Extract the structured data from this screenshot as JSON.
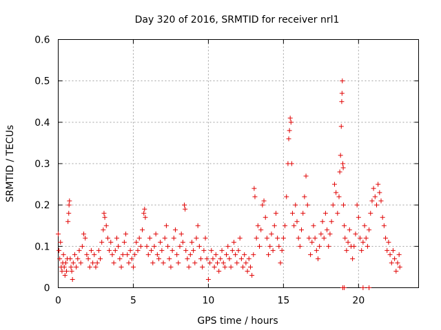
{
  "chart_data": {
    "type": "scatter",
    "title": "Day 320 of 2016, SRMTID for receiver nrl1",
    "xlabel": "GPS time / hours",
    "ylabel": "SRMTID / TECUs",
    "xlim": [
      0,
      24
    ],
    "ylim": [
      0,
      0.6
    ],
    "x_ticks": [
      0,
      5,
      10,
      15,
      20
    ],
    "y_ticks": [
      0,
      0.1,
      0.2,
      0.3,
      0.4,
      0.5,
      0.6
    ],
    "x_tick_labels": [
      "0",
      "5",
      "10",
      "15",
      "20"
    ],
    "y_tick_labels": [
      "0",
      "0.1",
      "0.2",
      "0.3",
      "0.4",
      "0.5",
      "0.6"
    ],
    "grid": true,
    "marker": "+",
    "color": "#e00000",
    "series": [
      {
        "name": "SRMTID",
        "points": [
          [
            0.0,
            0.13
          ],
          [
            0.05,
            0.09
          ],
          [
            0.1,
            0.07
          ],
          [
            0.15,
            0.11
          ],
          [
            0.2,
            0.05
          ],
          [
            0.25,
            0.04
          ],
          [
            0.3,
            0.06
          ],
          [
            0.35,
            0.08
          ],
          [
            0.4,
            0.05
          ],
          [
            0.45,
            0.03
          ],
          [
            0.5,
            0.06
          ],
          [
            0.55,
            0.04
          ],
          [
            0.6,
            0.07
          ],
          [
            0.65,
            0.16
          ],
          [
            0.7,
            0.18
          ],
          [
            0.72,
            0.2
          ],
          [
            0.75,
            0.21
          ],
          [
            0.8,
            0.07
          ],
          [
            0.85,
            0.05
          ],
          [
            0.9,
            0.04
          ],
          [
            0.95,
            0.02
          ],
          [
            1.0,
            0.06
          ],
          [
            1.1,
            0.08
          ],
          [
            1.2,
            0.05
          ],
          [
            1.3,
            0.07
          ],
          [
            1.4,
            0.09
          ],
          [
            1.5,
            0.06
          ],
          [
            1.6,
            0.1
          ],
          [
            1.7,
            0.13
          ],
          [
            1.8,
            0.12
          ],
          [
            1.9,
            0.08
          ],
          [
            2.0,
            0.07
          ],
          [
            2.1,
            0.05
          ],
          [
            2.2,
            0.09
          ],
          [
            2.3,
            0.06
          ],
          [
            2.4,
            0.08
          ],
          [
            2.5,
            0.05
          ],
          [
            2.6,
            0.06
          ],
          [
            2.7,
            0.09
          ],
          [
            2.8,
            0.07
          ],
          [
            2.9,
            0.11
          ],
          [
            3.0,
            0.14
          ],
          [
            3.05,
            0.18
          ],
          [
            3.1,
            0.17
          ],
          [
            3.2,
            0.15
          ],
          [
            3.3,
            0.12
          ],
          [
            3.4,
            0.09
          ],
          [
            3.5,
            0.11
          ],
          [
            3.6,
            0.08
          ],
          [
            3.7,
            0.06
          ],
          [
            3.8,
            0.09
          ],
          [
            3.9,
            0.12
          ],
          [
            4.0,
            0.1
          ],
          [
            4.1,
            0.07
          ],
          [
            4.2,
            0.05
          ],
          [
            4.3,
            0.08
          ],
          [
            4.4,
            0.11
          ],
          [
            4.5,
            0.13
          ],
          [
            4.6,
            0.08
          ],
          [
            4.7,
            0.06
          ],
          [
            4.8,
            0.09
          ],
          [
            4.9,
            0.07
          ],
          [
            5.0,
            0.05
          ],
          [
            5.1,
            0.08
          ],
          [
            5.2,
            0.11
          ],
          [
            5.3,
            0.09
          ],
          [
            5.4,
            0.12
          ],
          [
            5.5,
            0.1
          ],
          [
            5.6,
            0.14
          ],
          [
            5.7,
            0.18
          ],
          [
            5.75,
            0.19
          ],
          [
            5.8,
            0.17
          ],
          [
            5.9,
            0.1
          ],
          [
            6.0,
            0.08
          ],
          [
            6.1,
            0.12
          ],
          [
            6.2,
            0.09
          ],
          [
            6.3,
            0.06
          ],
          [
            6.4,
            0.1
          ],
          [
            6.5,
            0.13
          ],
          [
            6.6,
            0.08
          ],
          [
            6.7,
            0.07
          ],
          [
            6.8,
            0.11
          ],
          [
            6.9,
            0.09
          ],
          [
            7.0,
            0.06
          ],
          [
            7.1,
            0.12
          ],
          [
            7.2,
            0.15
          ],
          [
            7.3,
            0.1
          ],
          [
            7.4,
            0.07
          ],
          [
            7.5,
            0.05
          ],
          [
            7.6,
            0.09
          ],
          [
            7.7,
            0.12
          ],
          [
            7.8,
            0.14
          ],
          [
            7.9,
            0.08
          ],
          [
            8.0,
            0.06
          ],
          [
            8.1,
            0.1
          ],
          [
            8.2,
            0.13
          ],
          [
            8.3,
            0.11
          ],
          [
            8.4,
            0.2
          ],
          [
            8.45,
            0.19
          ],
          [
            8.5,
            0.09
          ],
          [
            8.6,
            0.07
          ],
          [
            8.7,
            0.05
          ],
          [
            8.8,
            0.08
          ],
          [
            8.9,
            0.11
          ],
          [
            9.0,
            0.09
          ],
          [
            9.1,
            0.06
          ],
          [
            9.2,
            0.12
          ],
          [
            9.3,
            0.15
          ],
          [
            9.4,
            0.1
          ],
          [
            9.5,
            0.07
          ],
          [
            9.6,
            0.05
          ],
          [
            9.7,
            0.09
          ],
          [
            9.8,
            0.12
          ],
          [
            9.9,
            0.07
          ],
          [
            10.0,
            0.02
          ],
          [
            10.1,
            0.06
          ],
          [
            10.2,
            0.09
          ],
          [
            10.3,
            0.07
          ],
          [
            10.4,
            0.05
          ],
          [
            10.5,
            0.08
          ],
          [
            10.6,
            0.06
          ],
          [
            10.7,
            0.04
          ],
          [
            10.8,
            0.07
          ],
          [
            10.9,
            0.09
          ],
          [
            11.0,
            0.06
          ],
          [
            11.1,
            0.05
          ],
          [
            11.2,
            0.08
          ],
          [
            11.3,
            0.1
          ],
          [
            11.4,
            0.07
          ],
          [
            11.5,
            0.05
          ],
          [
            11.6,
            0.09
          ],
          [
            11.7,
            0.11
          ],
          [
            11.8,
            0.08
          ],
          [
            11.9,
            0.06
          ],
          [
            12.0,
            0.09
          ],
          [
            12.1,
            0.12
          ],
          [
            12.2,
            0.07
          ],
          [
            12.3,
            0.05
          ],
          [
            12.4,
            0.08
          ],
          [
            12.5,
            0.06
          ],
          [
            12.6,
            0.04
          ],
          [
            12.7,
            0.07
          ],
          [
            12.8,
            0.05
          ],
          [
            12.9,
            0.03
          ],
          [
            13.0,
            0.08
          ],
          [
            13.05,
            0.24
          ],
          [
            13.1,
            0.22
          ],
          [
            13.2,
            0.12
          ],
          [
            13.3,
            0.15
          ],
          [
            13.4,
            0.1
          ],
          [
            13.5,
            0.14
          ],
          [
            13.6,
            0.2
          ],
          [
            13.7,
            0.21
          ],
          [
            13.8,
            0.17
          ],
          [
            13.9,
            0.12
          ],
          [
            14.0,
            0.08
          ],
          [
            14.1,
            0.1
          ],
          [
            14.2,
            0.13
          ],
          [
            14.3,
            0.09
          ],
          [
            14.4,
            0.15
          ],
          [
            14.5,
            0.18
          ],
          [
            14.6,
            0.12
          ],
          [
            14.7,
            0.1
          ],
          [
            14.8,
            0.06
          ],
          [
            14.9,
            0.09
          ],
          [
            15.0,
            0.12
          ],
          [
            15.1,
            0.15
          ],
          [
            15.2,
            0.22
          ],
          [
            15.3,
            0.3
          ],
          [
            15.35,
            0.36
          ],
          [
            15.4,
            0.38
          ],
          [
            15.45,
            0.41
          ],
          [
            15.5,
            0.4
          ],
          [
            15.55,
            0.3
          ],
          [
            15.6,
            0.18
          ],
          [
            15.7,
            0.15
          ],
          [
            15.8,
            0.2
          ],
          [
            15.9,
            0.16
          ],
          [
            16.0,
            0.12
          ],
          [
            16.1,
            0.1
          ],
          [
            16.2,
            0.14
          ],
          [
            16.3,
            0.18
          ],
          [
            16.4,
            0.22
          ],
          [
            16.5,
            0.27
          ],
          [
            16.6,
            0.2
          ],
          [
            16.7,
            0.12
          ],
          [
            16.8,
            0.08
          ],
          [
            16.9,
            0.11
          ],
          [
            17.0,
            0.15
          ],
          [
            17.1,
            0.12
          ],
          [
            17.2,
            0.09
          ],
          [
            17.3,
            0.07
          ],
          [
            17.4,
            0.1
          ],
          [
            17.5,
            0.13
          ],
          [
            17.6,
            0.16
          ],
          [
            17.7,
            0.12
          ],
          [
            17.8,
            0.18
          ],
          [
            17.9,
            0.14
          ],
          [
            18.0,
            0.1
          ],
          [
            18.1,
            0.13
          ],
          [
            18.2,
            0.16
          ],
          [
            18.3,
            0.2
          ],
          [
            18.4,
            0.25
          ],
          [
            18.5,
            0.23
          ],
          [
            18.6,
            0.18
          ],
          [
            18.7,
            0.22
          ],
          [
            18.75,
            0.28
          ],
          [
            18.8,
            0.32
          ],
          [
            18.85,
            0.39
          ],
          [
            18.88,
            0.45
          ],
          [
            18.9,
            0.47
          ],
          [
            18.92,
            0.5
          ],
          [
            18.95,
            0.3
          ],
          [
            18.98,
            0.29
          ],
          [
            19.0,
            0.2
          ],
          [
            19.05,
            0.15
          ],
          [
            19.1,
            0.12
          ],
          [
            19.2,
            0.09
          ],
          [
            19.3,
            0.11
          ],
          [
            19.4,
            0.14
          ],
          [
            19.5,
            0.1
          ],
          [
            19.6,
            0.07
          ],
          [
            19.7,
            0.1
          ],
          [
            19.8,
            0.13
          ],
          [
            19.9,
            0.2
          ],
          [
            20.0,
            0.17
          ],
          [
            20.1,
            0.12
          ],
          [
            20.2,
            0.09
          ],
          [
            20.3,
            0.11
          ],
          [
            20.4,
            0.15
          ],
          [
            20.5,
            0.12
          ],
          [
            20.6,
            0.1
          ],
          [
            20.7,
            0.14
          ],
          [
            20.8,
            0.18
          ],
          [
            20.9,
            0.21
          ],
          [
            21.0,
            0.24
          ],
          [
            21.1,
            0.22
          ],
          [
            21.2,
            0.2
          ],
          [
            21.3,
            0.25
          ],
          [
            21.4,
            0.23
          ],
          [
            21.5,
            0.21
          ],
          [
            21.6,
            0.17
          ],
          [
            21.7,
            0.15
          ],
          [
            21.8,
            0.12
          ],
          [
            21.9,
            0.09
          ],
          [
            22.0,
            0.11
          ],
          [
            22.1,
            0.08
          ],
          [
            22.2,
            0.06
          ],
          [
            22.3,
            0.09
          ],
          [
            22.4,
            0.07
          ],
          [
            22.5,
            0.04
          ],
          [
            22.6,
            0.06
          ],
          [
            22.7,
            0.08
          ],
          [
            22.75,
            0.05
          ],
          [
            18.95,
            0.0
          ],
          [
            19.05,
            0.0
          ],
          [
            20.3,
            0.0
          ],
          [
            20.7,
            0.0
          ]
        ]
      }
    ]
  }
}
